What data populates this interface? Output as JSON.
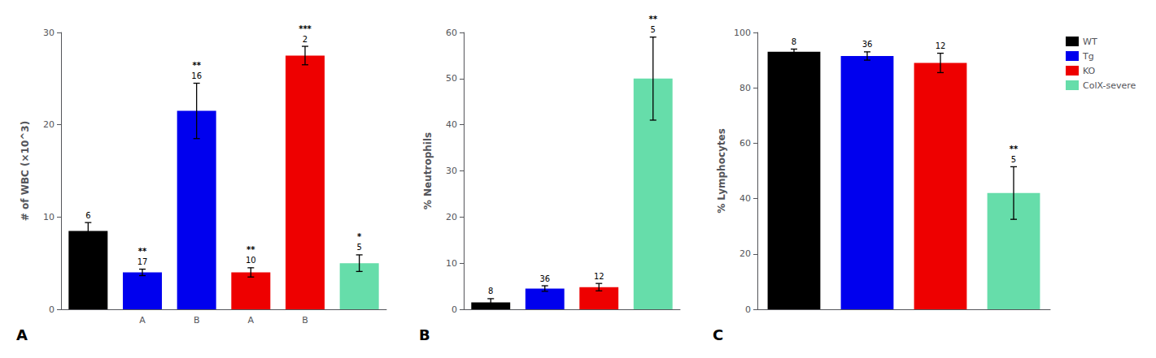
{
  "chart_data": [
    {
      "type": "bar",
      "panel_label": "A",
      "ylabel": "# of WBC (×10^3)",
      "categories": [
        null,
        "A",
        "B",
        "A",
        "B",
        null
      ],
      "values": [
        8.5,
        4.0,
        21.5,
        4.0,
        27.5,
        5.0
      ],
      "errors": [
        0.9,
        0.35,
        3.0,
        0.5,
        1.0,
        0.9
      ],
      "colors": [
        "#000000",
        "#0000EE",
        "#0000EE",
        "#EE0000",
        "#EE0000",
        "#66DDAA"
      ],
      "n_labels": [
        "6",
        "17",
        "16",
        "10",
        "2",
        "5"
      ],
      "sig_labels": [
        null,
        "**",
        "**",
        "**",
        "***",
        "*"
      ],
      "ylim": [
        0,
        30
      ],
      "yticks": [
        0,
        10,
        20,
        30
      ],
      "grid": false
    },
    {
      "type": "bar",
      "panel_label": "B",
      "ylabel": "% Neutrophils",
      "categories": [
        null,
        null,
        null,
        null
      ],
      "values": [
        1.5,
        4.5,
        4.8,
        50.0
      ],
      "errors": [
        0.8,
        0.6,
        0.8,
        9.0
      ],
      "colors": [
        "#000000",
        "#0000EE",
        "#EE0000",
        "#66DDAA"
      ],
      "n_labels": [
        "8",
        "36",
        "12",
        "5"
      ],
      "sig_labels": [
        null,
        null,
        null,
        "**"
      ],
      "ylim": [
        0,
        60
      ],
      "yticks": [
        0,
        10,
        20,
        30,
        40,
        50,
        60
      ],
      "grid": false,
      "tick_labels": "y"
    },
    {
      "type": "bar",
      "panel_label": "C",
      "ylabel": "% Lymphocytes",
      "categories": [
        null,
        null,
        null,
        null
      ],
      "values": [
        93.0,
        91.5,
        89.0,
        42.0
      ],
      "errors": [
        1.0,
        1.5,
        3.5,
        9.5
      ],
      "colors": [
        "#000000",
        "#0000EE",
        "#EE0000",
        "#66DDAA"
      ],
      "n_labels": [
        "8",
        "36",
        "12",
        "5"
      ],
      "sig_labels": [
        null,
        null,
        null,
        "**"
      ],
      "ylim": [
        0,
        100
      ],
      "yticks": [
        0,
        20,
        40,
        60,
        80,
        100
      ],
      "grid": false,
      "tick_labels": "y",
      "legend": "upper right",
      "legend_entries": [
        {
          "name": "WT",
          "color": "#000000"
        },
        {
          "name": "Tg",
          "color": "#0000EE"
        },
        {
          "name": "KO",
          "color": "#EE0000"
        },
        {
          "name": "ColX-severe",
          "color": "#66DDAA"
        }
      ]
    }
  ]
}
